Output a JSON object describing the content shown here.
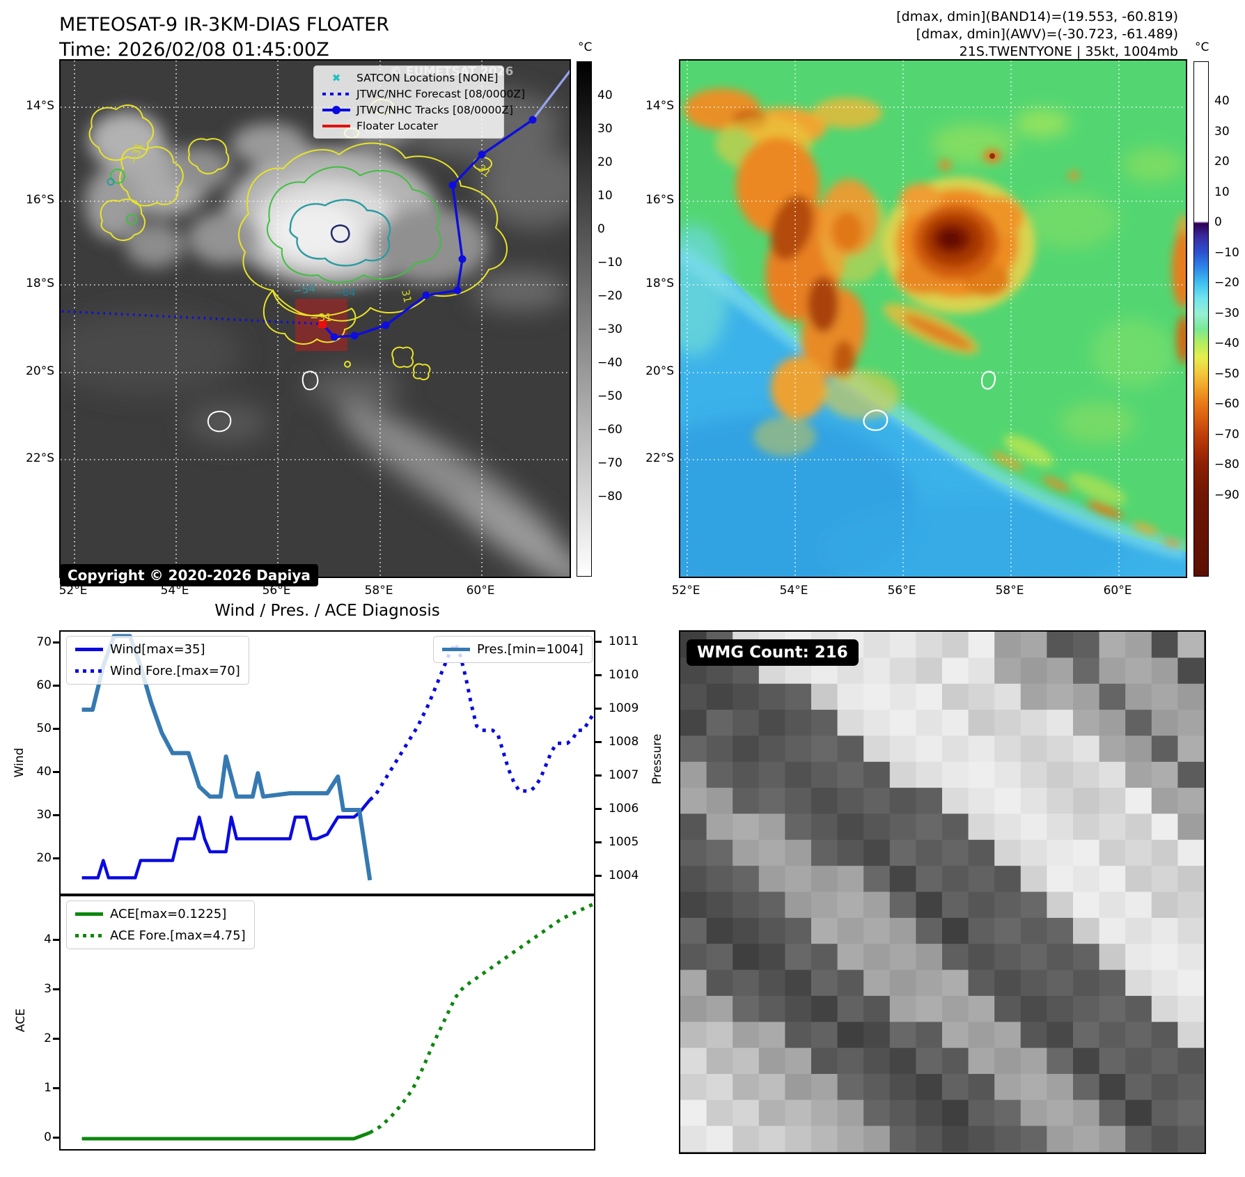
{
  "titles": {
    "satellite_title": "METEOSAT-9 IR-3KM-DIAS FLOATER",
    "satellite_time": "Time: 2026/02/08 01:45:00Z",
    "stats_line1": "[dmax, dmin](BAND14)=(19.553, -60.819)",
    "stats_line2": "[dmax, dmin](AWV)=(-30.723, -61.489)",
    "storm_line": "21S.TWENTYONE | 35kt, 1004mb",
    "diagnosis_title": "Wind / Pres. / ACE Diagnosis"
  },
  "ir_map": {
    "watermark": "© EUMETSAT 2026",
    "copyright": "Copyright © 2020-2026 Dapiya",
    "legend": [
      {
        "label": "SATCON Locations [NONE]"
      },
      {
        "label": "JTWC/NHC Forecast [08/0000Z]"
      },
      {
        "label": "JTWC/NHC Tracks [08/0000Z]"
      },
      {
        "label": "Floater Locater"
      }
    ],
    "lat_ticks": [
      "14°S",
      "16°S",
      "18°S",
      "20°S",
      "22°S"
    ],
    "lon_ticks": [
      "52°E",
      "54°E",
      "56°E",
      "58°E",
      "60°E"
    ],
    "colorbar_unit": "°C",
    "colorbar_ticks": [
      "40",
      "30",
      "20",
      "10",
      "0",
      "−10",
      "−20",
      "−30",
      "−40",
      "−50",
      "−60",
      "−70",
      "−80"
    ],
    "contour_labels": [
      "−54",
      "−64",
      "−31",
      "31",
      "−31",
      "31"
    ]
  },
  "awv_map": {
    "lat_ticks": [
      "14°S",
      "16°S",
      "18°S",
      "20°S",
      "22°S"
    ],
    "lon_ticks": [
      "52°E",
      "54°E",
      "56°E",
      "58°E",
      "60°E"
    ],
    "colorbar_unit": "°C",
    "colorbar_ticks": [
      "40",
      "30",
      "20",
      "10",
      "0",
      "−10",
      "−20",
      "−30",
      "−40",
      "−50",
      "−60",
      "−70",
      "−80",
      "−90"
    ]
  },
  "wmg": {
    "label": "WMG Count: 216",
    "grid": [
      "23899999988966336627",
      "22389999889966636662",
      "22233899998896663666",
      "23323389999888966366",
      "33233338999988896636",
      "63332333899998889663",
      "66333233338999888966",
      "36663323333899988896",
      "33666332333389998889",
      "23366663233338999888",
      "22336666323333899988",
      "32233666632333389998",
      "33223366663233338999",
      "63322336666323333899",
      "66332233666632333389",
      "77663322336663233338",
      "87766332233666323333",
      "88776633223366632333",
      "98877663322336663233",
      "99887766332233666323"
    ]
  },
  "chart_data": [
    {
      "type": "line",
      "title": "Wind / Pres. / ACE Diagnosis",
      "subplot": "wind_pressure",
      "ylabel_left": "Wind",
      "ylabel_right": "Pressure",
      "ylim_left": [
        11.5,
        72.5
      ],
      "ylim_right": [
        1003.7,
        1011.3
      ],
      "x_range": [
        0,
        100
      ],
      "yticks_left": [
        "70",
        "60",
        "50",
        "40",
        "30",
        "20"
      ],
      "yticks_right": [
        "1011",
        "1010",
        "1009",
        "1008",
        "1007",
        "1006",
        "1005",
        "1004"
      ],
      "series": [
        {
          "name": "Wind[max=35]",
          "color": "#0a0ae0",
          "style": "solid",
          "axis": "left",
          "points": [
            [
              4,
              16
            ],
            [
              7,
              16
            ],
            [
              8,
              20
            ],
            [
              9,
              16
            ],
            [
              12,
              16
            ],
            [
              14,
              16
            ],
            [
              15,
              20
            ],
            [
              20,
              20
            ],
            [
              21,
              20
            ],
            [
              22,
              25
            ],
            [
              25,
              25
            ],
            [
              26,
              30
            ],
            [
              27,
              25
            ],
            [
              28,
              22
            ],
            [
              31,
              22
            ],
            [
              32,
              30
            ],
            [
              33,
              25
            ],
            [
              34,
              25
            ],
            [
              43,
              25
            ],
            [
              44,
              30
            ],
            [
              46,
              30
            ],
            [
              47,
              25
            ],
            [
              48,
              25
            ],
            [
              50,
              26
            ],
            [
              52,
              30
            ],
            [
              55,
              30
            ],
            [
              56,
              31
            ],
            [
              58,
              34
            ]
          ]
        },
        {
          "name": "Wind Fore.[max=70]",
          "color": "#0a0ae0",
          "style": "dotted",
          "axis": "left",
          "points": [
            [
              58,
              34
            ],
            [
              59,
              35
            ],
            [
              61,
              39
            ],
            [
              63,
              43
            ],
            [
              65,
              47
            ],
            [
              67,
              51
            ],
            [
              69,
              56
            ],
            [
              71,
              62
            ],
            [
              72,
              65
            ],
            [
              73,
              68
            ],
            [
              74,
              70
            ],
            [
              75,
              67
            ],
            [
              76,
              62
            ],
            [
              77,
              56
            ],
            [
              78,
              51
            ],
            [
              79,
              50
            ],
            [
              81,
              50
            ],
            [
              82,
              49
            ],
            [
              83,
              45
            ],
            [
              84,
              41
            ],
            [
              85,
              38
            ],
            [
              86,
              36
            ],
            [
              88,
              36
            ],
            [
              89,
              37
            ],
            [
              90,
              39
            ],
            [
              91,
              42
            ],
            [
              92,
              45
            ],
            [
              93,
              47
            ],
            [
              95,
              47
            ],
            [
              96,
              48
            ],
            [
              97,
              50
            ],
            [
              98,
              50
            ],
            [
              99,
              52
            ],
            [
              100,
              54
            ]
          ]
        },
        {
          "name": "Pres.[min=1004]",
          "color": "#3579b1",
          "style": "solid",
          "axis": "right",
          "points": [
            [
              4,
              1009
            ],
            [
              6,
              1009
            ],
            [
              8,
              1010.3
            ],
            [
              10,
              1011.2
            ],
            [
              13,
              1011.2
            ],
            [
              15,
              1010.3
            ],
            [
              17,
              1009.2
            ],
            [
              19,
              1008.3
            ],
            [
              21,
              1007.7
            ],
            [
              24,
              1007.7
            ],
            [
              26,
              1006.7
            ],
            [
              28,
              1006.4
            ],
            [
              30,
              1006.4
            ],
            [
              31,
              1007.6
            ],
            [
              33,
              1006.4
            ],
            [
              36,
              1006.4
            ],
            [
              37,
              1007.1
            ],
            [
              38,
              1006.4
            ],
            [
              43,
              1006.5
            ],
            [
              50,
              1006.5
            ],
            [
              52,
              1007.0
            ],
            [
              53,
              1006.0
            ],
            [
              56,
              1006.0
            ],
            [
              58,
              1003.9
            ]
          ]
        }
      ]
    },
    {
      "type": "line",
      "subplot": "ace",
      "ylabel": "ACE",
      "ylim": [
        -0.33,
        4.9
      ],
      "x_range": [
        0,
        100
      ],
      "yticks": [
        "4",
        "3",
        "2",
        "1",
        "0"
      ],
      "series": [
        {
          "name": "ACE[max=0.1225]",
          "color": "#0d870d",
          "style": "solid",
          "points": [
            [
              4,
              0
            ],
            [
              55,
              0
            ],
            [
              58,
              0.1225
            ]
          ]
        },
        {
          "name": "ACE Fore.[max=4.75]",
          "color": "#0d870d",
          "style": "dotted",
          "points": [
            [
              58,
              0.1225
            ],
            [
              60,
              0.25
            ],
            [
              62,
              0.45
            ],
            [
              64,
              0.7
            ],
            [
              66,
              1.0
            ],
            [
              68,
              1.45
            ],
            [
              70,
              1.95
            ],
            [
              72,
              2.4
            ],
            [
              74,
              2.85
            ],
            [
              75,
              3.0
            ],
            [
              76,
              3.1
            ],
            [
              78,
              3.25
            ],
            [
              80,
              3.4
            ],
            [
              82,
              3.55
            ],
            [
              84,
              3.7
            ],
            [
              86,
              3.85
            ],
            [
              88,
              4.0
            ],
            [
              90,
              4.15
            ],
            [
              92,
              4.3
            ],
            [
              94,
              4.45
            ],
            [
              96,
              4.55
            ],
            [
              98,
              4.65
            ],
            [
              100,
              4.75
            ]
          ]
        }
      ]
    }
  ]
}
